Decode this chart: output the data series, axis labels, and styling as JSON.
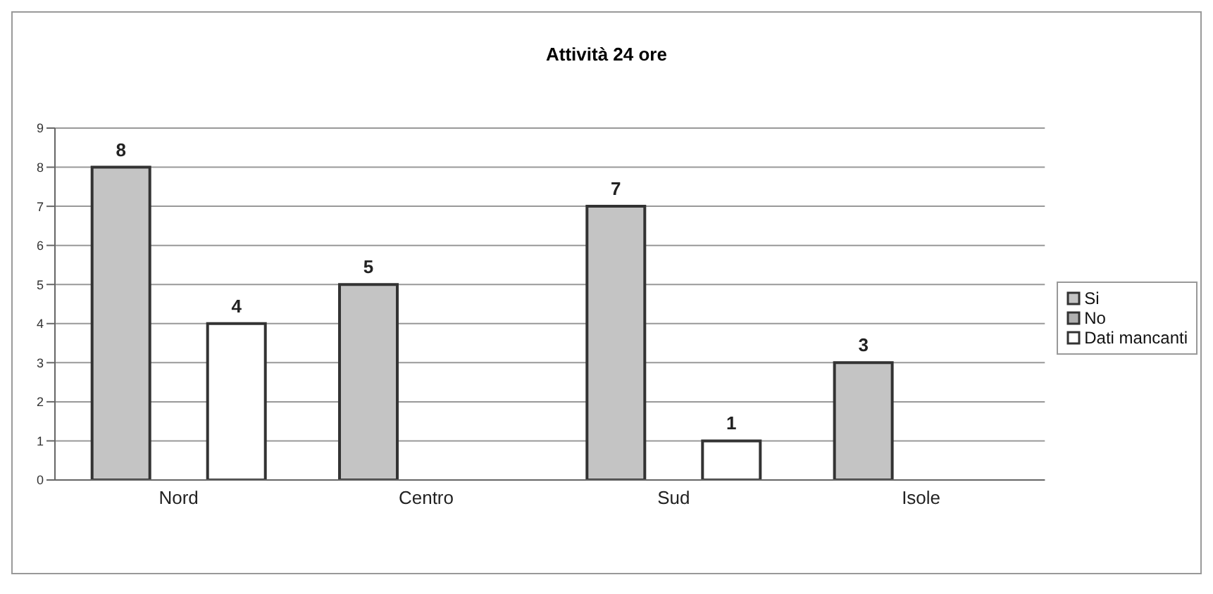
{
  "chart_data": {
    "type": "bar",
    "title": "Attività 24 ore",
    "categories": [
      "Nord",
      "Centro",
      "Sud",
      "Isole"
    ],
    "series": [
      {
        "name": "Si",
        "color": "#c4c4c4",
        "values": [
          8,
          5,
          7,
          3
        ]
      },
      {
        "name": "No",
        "color": "#b0b0b0",
        "values": [
          null,
          null,
          null,
          null
        ]
      },
      {
        "name": "Dati mancanti",
        "color": "#ffffff",
        "values": [
          4,
          null,
          1,
          null
        ]
      }
    ],
    "ylim": [
      0,
      9
    ],
    "yticks": [
      0,
      1,
      2,
      3,
      4,
      5,
      6,
      7,
      8,
      9
    ],
    "grid": "y",
    "legend": "right",
    "data_labels": true
  }
}
